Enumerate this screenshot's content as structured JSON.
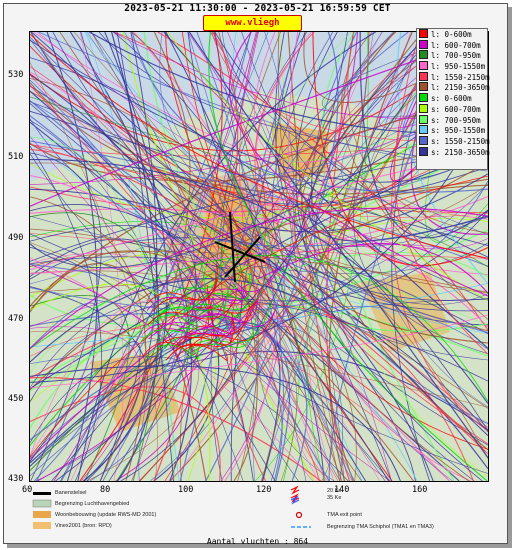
{
  "header": {
    "title": "2023-05-21 11:30:00 - 2023-05-21 16:59:59 CET",
    "site": "www.vliegh inder.nl"
  },
  "axes": {
    "y_ticks": [
      "530",
      "510",
      "490",
      "470",
      "450",
      "430"
    ],
    "x_ticks": [
      "60",
      "80",
      "100",
      "120",
      "140",
      "160"
    ]
  },
  "legend": [
    {
      "label": "l: 0-600m",
      "color": "#ff0000"
    },
    {
      "label": "l: 600-700m",
      "color": "#cc00cc"
    },
    {
      "label": "l: 700-950m",
      "color": "#228b22"
    },
    {
      "label": "l: 950-1550m",
      "color": "#ff66cc"
    },
    {
      "label": "l: 1550-2150m",
      "color": "#ff3355"
    },
    {
      "label": "l: 2150-3650m",
      "color": "#a0522d"
    },
    {
      "label": "s: 0-600m",
      "color": "#00dd00"
    },
    {
      "label": "s: 600-700m",
      "color": "#aaff00"
    },
    {
      "label": "s: 700-950m",
      "color": "#66ff66"
    },
    {
      "label": "s: 950-1550m",
      "color": "#66ccff"
    },
    {
      "label": "s: 1550-2150m",
      "color": "#5566cc"
    },
    {
      "label": "s: 2150-3650m",
      "color": "#333399"
    }
  ],
  "key": {
    "runway": "Banenstelsel",
    "airport": "Begrenzing Luchthavengebied",
    "housing": "Woonbebouwing (update RWS-MD 2001)",
    "vinex": "Vinex2001 (bron: RPD)",
    "ke20": "20 Ke",
    "ke35": "35 Ke",
    "tma_exit": "TMA exit point",
    "tma_limit": "Begrenzing TMA Schiphol  (TMA1 en TMA3)"
  },
  "footer": {
    "count": "Aantal vluchten : 864"
  }
}
